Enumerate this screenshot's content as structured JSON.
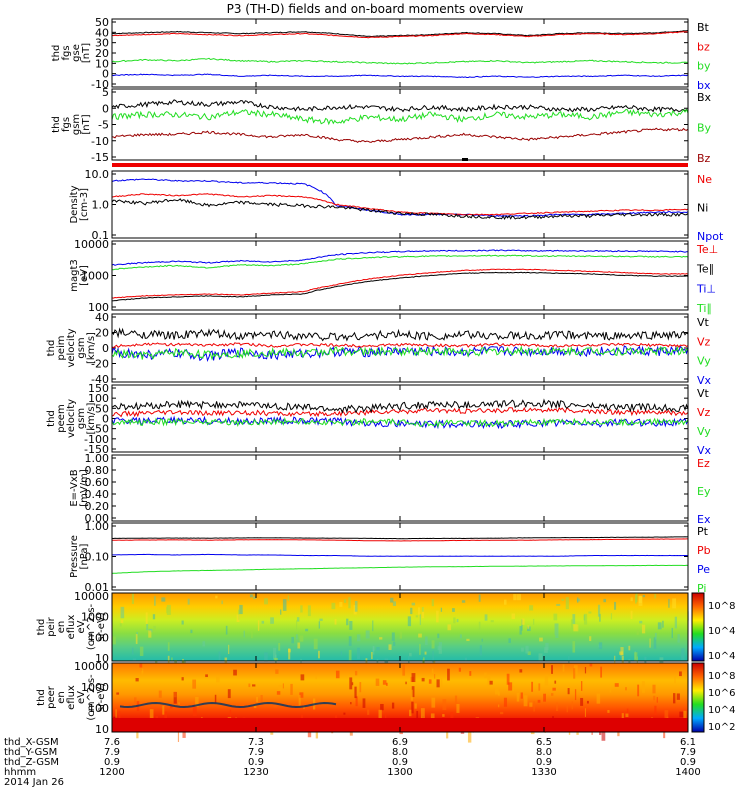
{
  "title": "P3 (TH-D) fields and on-board moments overview",
  "colors": {
    "black": "#000000",
    "red": "#ee0000",
    "green": "#22dd22",
    "blue": "#0000ee",
    "darkred": "#990000"
  },
  "panels": [
    {
      "id": "fgs-gse",
      "ylabel": [
        "thd",
        "fgs",
        "gse",
        "[nT]"
      ],
      "yticks": [
        "50",
        "40",
        "30",
        "20",
        "10",
        "0",
        "-10"
      ],
      "ymin": -12,
      "ymax": 52,
      "legend": [
        {
          "label": "Bt",
          "color": "black"
        },
        {
          "label": "bz",
          "color": "red"
        },
        {
          "label": "by",
          "color": "green"
        },
        {
          "label": "bx",
          "color": "blue"
        }
      ],
      "series": [
        {
          "name": "Bt",
          "color": "black",
          "base": [
            40,
            41,
            42,
            41,
            40,
            41,
            42,
            40,
            37,
            38,
            39,
            41,
            40,
            38,
            40,
            41,
            40,
            41,
            43
          ],
          "noise": 0.4
        },
        {
          "name": "bz",
          "color": "red",
          "base": [
            38,
            39,
            40,
            39,
            38,
            39,
            40,
            38,
            36,
            37,
            38,
            40,
            39,
            37,
            39,
            40,
            39,
            40,
            42
          ],
          "noise": 0.4
        },
        {
          "name": "by",
          "color": "green",
          "base": [
            11,
            13,
            12,
            14,
            12,
            11,
            12,
            11,
            10,
            9,
            10,
            11,
            12,
            10,
            11,
            12,
            11,
            10,
            10
          ],
          "noise": 0.6
        },
        {
          "name": "bx",
          "color": "blue",
          "base": [
            -3,
            -2,
            -3,
            -2,
            -4,
            -3,
            -4,
            -4,
            -3,
            -4,
            -4,
            -5,
            -4,
            -5,
            -4,
            -4,
            -3,
            -4,
            -3
          ],
          "noise": 0.4
        }
      ]
    },
    {
      "id": "fgs-gsm",
      "ylabel": [
        "thd",
        "fgs",
        "gsm",
        "[nT]"
      ],
      "yticks": [
        "5",
        "0",
        "-5",
        "-10",
        "-15"
      ],
      "ymin": -18,
      "ymax": 8,
      "legend": [
        {
          "label": "Bx",
          "color": "black"
        },
        {
          "label": "By",
          "color": "green"
        },
        {
          "label": "Bz",
          "color": "darkred"
        }
      ],
      "series": [
        {
          "name": "Bx",
          "color": "black",
          "base": [
            2,
            3,
            4,
            3,
            4,
            2,
            1,
            2,
            2,
            1,
            2,
            1,
            2,
            2,
            1,
            1,
            2,
            1,
            1
          ],
          "noise": 0.9
        },
        {
          "name": "By",
          "color": "green",
          "base": [
            -2,
            -1,
            -1,
            -2,
            0,
            -1,
            -3,
            -4,
            -2,
            -3,
            -1,
            -3,
            -1,
            -2,
            -1,
            -2,
            0,
            -1,
            0
          ],
          "noise": 1.2
        },
        {
          "name": "Bz",
          "color": "darkred",
          "base": [
            -10,
            -9,
            -9,
            -8,
            -9,
            -10,
            -9,
            -11,
            -12,
            -11,
            -10,
            -9,
            -10,
            -11,
            -10,
            -9,
            -8,
            -7,
            -7
          ],
          "noise": 0.5
        }
      ]
    },
    {
      "id": "density",
      "ylabel": [
        "Density",
        "[cm-3]"
      ],
      "yticks": [
        "10.0",
        "1.0",
        "0.1"
      ],
      "log": true,
      "ymin": 0.1,
      "ymax": 12,
      "legend": [
        {
          "label": "Ne",
          "color": "red"
        },
        {
          "label": "Ni",
          "color": "black"
        },
        {
          "label": "Npot",
          "color": "blue"
        }
      ],
      "series": [
        {
          "name": "Npot",
          "color": "blue",
          "base": [
            7,
            8,
            7,
            7,
            6,
            6,
            5.5,
            1.0,
            0.7,
            0.5,
            0.5,
            0.5,
            0.45,
            0.45,
            0.5,
            0.5,
            0.55,
            0.6,
            0.6
          ],
          "noise": 0.05
        },
        {
          "name": "Ne",
          "color": "red",
          "base": [
            2,
            2.5,
            2.2,
            2.5,
            2,
            2.2,
            2,
            1.1,
            0.8,
            0.6,
            0.55,
            0.5,
            0.5,
            0.55,
            0.6,
            0.65,
            0.7,
            0.7,
            0.75
          ],
          "noise": 0.04
        },
        {
          "name": "Ni",
          "color": "black",
          "base": [
            1.5,
            1.2,
            1.6,
            1.0,
            1.3,
            1.1,
            1.0,
            0.9,
            0.7,
            0.55,
            0.5,
            0.45,
            0.4,
            0.4,
            0.45,
            0.45,
            0.5,
            0.5,
            0.5
          ],
          "noise": 0.12
        }
      ]
    },
    {
      "id": "temp",
      "ylabel": [
        "magt3",
        "[eV]"
      ],
      "yticks": [
        "10000",
        "1000",
        "100"
      ],
      "log": true,
      "ymin": 40,
      "ymax": 12000,
      "legend": [
        {
          "label": "Te⊥",
          "color": "red"
        },
        {
          "label": "Te∥",
          "color": "black"
        },
        {
          "label": "Ti⊥",
          "color": "blue"
        },
        {
          "label": "Ti∥",
          "color": "green"
        }
      ],
      "series": [
        {
          "name": "Ti⊥",
          "color": "blue",
          "base": [
            1800,
            2200,
            2500,
            2200,
            2600,
            2400,
            2800,
            4500,
            5500,
            6000,
            6500,
            6500,
            6800,
            6500,
            6500,
            6400,
            6300,
            6200,
            6000
          ],
          "noise": 0.05
        },
        {
          "name": "Ti∥",
          "color": "green",
          "base": [
            1200,
            1500,
            1700,
            1400,
            1800,
            1700,
            2000,
            3000,
            3500,
            3800,
            4000,
            4100,
            4200,
            4100,
            4000,
            4000,
            3900,
            3800,
            3700
          ],
          "noise": 0.05
        },
        {
          "name": "Te⊥",
          "color": "red",
          "base": [
            90,
            110,
            120,
            130,
            120,
            140,
            160,
            300,
            500,
            700,
            900,
            1100,
            1200,
            1200,
            1100,
            1000,
            900,
            800,
            800
          ],
          "noise": 0.03
        },
        {
          "name": "Te∥",
          "color": "black",
          "base": [
            70,
            90,
            100,
            110,
            100,
            120,
            130,
            250,
            400,
            550,
            700,
            850,
            900,
            900,
            850,
            800,
            700,
            650,
            650
          ],
          "noise": 0.03
        }
      ]
    },
    {
      "id": "peim",
      "ylabel": [
        "thd",
        "peim",
        "velocity",
        "gsm",
        "[km/s]"
      ],
      "yticks": [
        "40",
        "20",
        "0",
        "-20",
        "-40"
      ],
      "ymin": -45,
      "ymax": 45,
      "legend": [
        {
          "label": "Vt",
          "color": "black"
        },
        {
          "label": "Vz",
          "color": "red"
        },
        {
          "label": "Vy",
          "color": "green"
        },
        {
          "label": "Vx",
          "color": "blue"
        }
      ],
      "series": [
        {
          "name": "Vx",
          "color": "blue",
          "base": [
            -5,
            -10,
            -8,
            -12,
            -6,
            -10,
            -8,
            -5,
            -6,
            -4,
            -5,
            -6,
            -4,
            -5,
            -4,
            -5,
            -4,
            -5,
            -4
          ],
          "noise": 7
        },
        {
          "name": "Vy",
          "color": "green",
          "base": [
            -8,
            -12,
            -6,
            -10,
            -8,
            -6,
            -8,
            -4,
            -6,
            -5,
            -4,
            -6,
            -5,
            -4,
            -5,
            -4,
            -5,
            -4,
            -5
          ],
          "noise": 6
        },
        {
          "name": "Vz",
          "color": "red",
          "base": [
            2,
            6,
            5,
            4,
            6,
            3,
            5,
            4,
            3,
            5,
            4,
            3,
            5,
            4,
            3,
            4,
            5,
            4,
            3
          ],
          "noise": 2
        },
        {
          "name": "Vt",
          "color": "black",
          "base": [
            22,
            20,
            18,
            22,
            16,
            20,
            18,
            16,
            18,
            20,
            17,
            19,
            18,
            17,
            19,
            18,
            17,
            19,
            18
          ],
          "noise": 6
        }
      ]
    },
    {
      "id": "peem",
      "ylabel": [
        "thd",
        "peem",
        "velocity",
        "gsm",
        "[km/s]"
      ],
      "yticks": [
        "150",
        "100",
        "50",
        "0",
        "-50",
        "-100",
        "-150"
      ],
      "ymin": -150,
      "ymax": 150,
      "legend": [
        {
          "label": "Vt",
          "color": "black"
        },
        {
          "label": "Vz",
          "color": "red"
        },
        {
          "label": "Vy",
          "color": "green"
        },
        {
          "label": "Vx",
          "color": "blue"
        }
      ],
      "series": [
        {
          "name": "Vx",
          "color": "blue",
          "base": [
            -10,
            -15,
            -10,
            -12,
            -15,
            -10,
            -12,
            -15,
            -20,
            -25,
            -30,
            -25,
            -30,
            -25,
            -20,
            -25,
            -20,
            -20,
            -15
          ],
          "noise": 18
        },
        {
          "name": "Vy",
          "color": "green",
          "base": [
            -15,
            -20,
            -15,
            -15,
            -20,
            -15,
            -15,
            -20,
            -15,
            -20,
            -25,
            -20,
            -25,
            -20,
            -20,
            -15,
            -20,
            -15,
            -15
          ],
          "noise": 15
        },
        {
          "name": "Vz",
          "color": "red",
          "base": [
            20,
            25,
            30,
            25,
            30,
            25,
            20,
            25,
            30,
            35,
            40,
            35,
            40,
            45,
            40,
            35,
            30,
            30,
            25
          ],
          "noise": 12
        },
        {
          "name": "Vt",
          "color": "black",
          "base": [
            55,
            60,
            70,
            65,
            70,
            60,
            55,
            45,
            50,
            60,
            70,
            65,
            70,
            75,
            70,
            60,
            55,
            55,
            50
          ],
          "noise": 18
        }
      ]
    },
    {
      "id": "efield",
      "ylabel": [
        "E=-VxB",
        "[mV/m]"
      ],
      "yticks": [
        "1.00",
        "0.80",
        "0.60",
        "0.40",
        "0.20",
        "0.00"
      ],
      "ymin": 0,
      "ymax": 1,
      "legend": [
        {
          "label": "Ez",
          "color": "red"
        },
        {
          "label": "Ey",
          "color": "green"
        },
        {
          "label": "Ex",
          "color": "blue"
        }
      ],
      "series": []
    },
    {
      "id": "pressure",
      "ylabel": [
        "Pressure",
        "[nPa]"
      ],
      "yticks": [
        "1.00",
        "0.10",
        "0.01"
      ],
      "log": true,
      "ymin": 0.008,
      "ymax": 3,
      "legend": [
        {
          "label": "Pt",
          "color": "black"
        },
        {
          "label": "Pb",
          "color": "red"
        },
        {
          "label": "Pe",
          "color": "blue"
        },
        {
          "label": "Pi",
          "color": "green"
        }
      ],
      "series": [
        {
          "name": "Pt",
          "color": "black",
          "base": [
            0.9,
            0.92,
            0.93,
            0.92,
            0.94,
            0.95,
            0.93,
            0.92,
            0.9,
            0.88,
            0.9,
            0.9,
            0.92,
            0.95,
            0.97,
            0.98,
            1.0,
            1.02,
            1.05
          ],
          "noise": 0.01
        },
        {
          "name": "Pb",
          "color": "red",
          "base": [
            0.75,
            0.77,
            0.78,
            0.76,
            0.78,
            0.8,
            0.78,
            0.76,
            0.72,
            0.7,
            0.72,
            0.74,
            0.75,
            0.76,
            0.78,
            0.8,
            0.82,
            0.84,
            0.85
          ],
          "noise": 0.01
        },
        {
          "name": "Pe",
          "color": "blue",
          "base": [
            0.18,
            0.19,
            0.18,
            0.19,
            0.18,
            0.18,
            0.17,
            0.17,
            0.16,
            0.16,
            0.16,
            0.16,
            0.16,
            0.16,
            0.16,
            0.17,
            0.17,
            0.17,
            0.17
          ],
          "noise": 0.01
        },
        {
          "name": "Pi",
          "color": "green",
          "base": [
            0.03,
            0.035,
            0.038,
            0.04,
            0.042,
            0.045,
            0.047,
            0.05,
            0.052,
            0.055,
            0.057,
            0.058,
            0.06,
            0.061,
            0.062,
            0.063,
            0.064,
            0.065,
            0.065
          ],
          "noise": 0.01
        }
      ]
    },
    {
      "id": "peir",
      "ylabel": [
        "thd",
        "peir",
        "en",
        "eflux",
        "eV",
        "(cm^2-s-",
        "sr-eV)"
      ],
      "yticks": [
        "10000",
        "1000",
        "100",
        "10"
      ],
      "spectrogram": "ion",
      "colorbar": [
        "10^8",
        "10^4",
        "10^4"
      ]
    },
    {
      "id": "peer",
      "ylabel": [
        "thd",
        "peer",
        "en",
        "eflux",
        "eV",
        "(cm^2-s-",
        "sr-eV)"
      ],
      "yticks": [
        "10000",
        "1000",
        "100",
        "10"
      ],
      "spectrogram": "electron",
      "colorbar": [
        "10^8",
        "10^6",
        "10^4",
        "10^2"
      ]
    }
  ],
  "footer": {
    "row_labels": [
      "thd_X-GSM",
      "thd_Y-GSM",
      "thd_Z-GSM",
      "hhmm",
      "2014 Jan 26"
    ],
    "columns": [
      {
        "values": [
          "7.6",
          "7.9",
          "0.9",
          "1200"
        ]
      },
      {
        "values": [
          "7.3",
          "7.9",
          "0.9",
          "1230"
        ]
      },
      {
        "values": [
          "6.9",
          "8.0",
          "0.9",
          "1300"
        ]
      },
      {
        "values": [
          "6.5",
          "8.0",
          "0.9",
          "1330"
        ]
      },
      {
        "values": [
          "6.1",
          "7.9",
          "0.9",
          "1400"
        ]
      }
    ]
  },
  "chart_data": {
    "type": "line",
    "title": "P3 (TH-D) fields and on-board moments overview",
    "x_ticks": [
      "1200",
      "1230",
      "1300",
      "1330",
      "1400"
    ],
    "x_label": "hhmm",
    "date": "2014 Jan 26",
    "series": [
      {
        "name": "Bt",
        "values": [
          40,
          41,
          42,
          41,
          40,
          41,
          42,
          40,
          37,
          38,
          39,
          41,
          40,
          38,
          40,
          41,
          40,
          41,
          43
        ]
      },
      {
        "name": "bz",
        "values": [
          38,
          39,
          40,
          39,
          38,
          39,
          40,
          38,
          36,
          37,
          38,
          40,
          39,
          37,
          39,
          40,
          39,
          40,
          42
        ]
      },
      {
        "name": "by",
        "values": [
          11,
          13,
          12,
          14,
          12,
          11,
          12,
          11,
          10,
          9,
          10,
          11,
          12,
          10,
          11,
          12,
          11,
          10,
          10
        ]
      },
      {
        "name": "bx",
        "values": [
          -3,
          -2,
          -3,
          -2,
          -4,
          -3,
          -4,
          -4,
          -3,
          -4,
          -4,
          -5,
          -4,
          -5,
          -4,
          -4,
          -3,
          -4,
          -3
        ]
      }
    ]
  }
}
